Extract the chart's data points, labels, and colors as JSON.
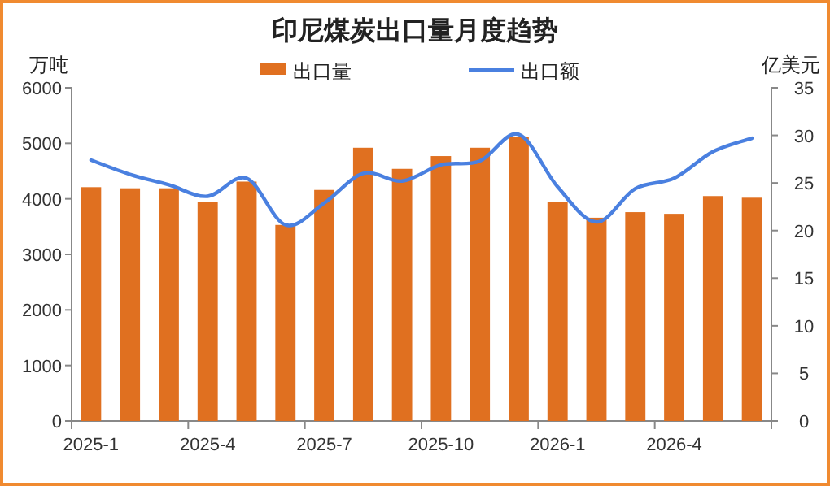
{
  "chart_data": {
    "type": "bar",
    "title": "印尼煤炭出口量月度趋势",
    "ylabel": "万吨",
    "y2label": "亿美元",
    "categories": [
      "2025-1",
      null,
      null,
      "2025-4",
      null,
      null,
      "2025-7",
      null,
      null,
      "2025-10",
      null,
      null,
      "2026-1",
      null,
      null,
      "2026-4",
      null,
      null
    ],
    "series": [
      {
        "name": "出口量",
        "color": "#e07020",
        "values": [
          4210,
          4190,
          4190,
          3950,
          4310,
          3530,
          4160,
          4920,
          4540,
          4770,
          4920,
          5120,
          3950,
          3660,
          3760,
          3730,
          4050,
          4020
        ]
      },
      {
        "name": "出口额",
        "type": "line",
        "axis": "y2",
        "color": "#4a80e0",
        "values": [
          27.4,
          25.9,
          24.8,
          23.6,
          25.5,
          20.6,
          22.9,
          26.0,
          25.2,
          26.9,
          27.3,
          30.1,
          24.6,
          20.9,
          24.4,
          25.5,
          28.3,
          29.7
        ]
      }
    ],
    "ylim": [
      0,
      6000
    ],
    "yticks": [
      0,
      1000,
      2000,
      3000,
      4000,
      5000,
      6000
    ],
    "y2lim": [
      0,
      35
    ],
    "y2ticks": [
      0,
      5,
      10,
      15,
      20,
      25,
      30,
      35
    ],
    "grid": false,
    "legend": "top",
    "marker": "none"
  }
}
